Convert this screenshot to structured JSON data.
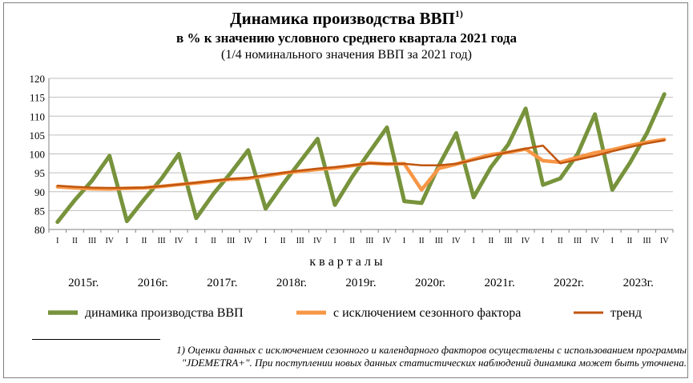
{
  "title": "Динамика производства ВВП",
  "title_sup": "1)",
  "subtitle": "в % к значению условного среднего квартала 2021 года",
  "subtitle2": "(1/4 номинального значения ВВП за 2021 год)",
  "footnote_line1": "1) Оценки  данных  с  исключением сезонного и календарного факторов осуществлены с использованием  программы",
  "footnote_line2": "\"JDEMETRA+\". При поступлении новых данных статистических наблюдений динамика может быть уточнена.",
  "chart_data": {
    "type": "line",
    "xlabel": "к в а р т а л ы",
    "ylim": [
      80,
      120
    ],
    "yticks": [
      80,
      85,
      90,
      95,
      100,
      105,
      110,
      115,
      120
    ],
    "grid": true,
    "legend_position": "bottom",
    "quarter_labels": [
      "I",
      "II",
      "III",
      "IV"
    ],
    "years": [
      "2015г.",
      "2016г.",
      "2017г.",
      "2018г.",
      "2019г.",
      "2020г.",
      "2021г.",
      "2022г.",
      "2023г."
    ],
    "categories": [
      "2015 I",
      "2015 II",
      "2015 III",
      "2015 IV",
      "2016 I",
      "2016 II",
      "2016 III",
      "2016 IV",
      "2017 I",
      "2017 II",
      "2017 III",
      "2017 IV",
      "2018 I",
      "2018 II",
      "2018 III",
      "2018 IV",
      "2019 I",
      "2019 II",
      "2019 III",
      "2019 IV",
      "2020 I",
      "2020 II",
      "2020 III",
      "2020 IV",
      "2021 I",
      "2021 II",
      "2021 III",
      "2021 IV",
      "2022 I",
      "2022 II",
      "2022 III",
      "2022 IV",
      "2023 I",
      "2023 II",
      "2023 III",
      "2023 IV"
    ],
    "series": [
      {
        "name": "динамика производства ВВП",
        "color": "#77933c",
        "values": [
          82.0,
          87.8,
          93.0,
          99.5,
          82.2,
          88.0,
          93.5,
          100.0,
          83.0,
          89.5,
          95.0,
          101.0,
          85.5,
          92.0,
          98.0,
          104.0,
          86.5,
          94.0,
          100.5,
          107.0,
          87.5,
          87.0,
          97.0,
          105.5,
          88.5,
          96.5,
          102.5,
          112.0,
          91.8,
          93.5,
          100.0,
          110.5,
          90.5,
          97.5,
          105.5,
          115.8
        ]
      },
      {
        "name": "с исключением  сезонного фактора",
        "color": "#f79646",
        "values": [
          91.3,
          91.0,
          90.8,
          90.7,
          90.9,
          91.0,
          91.4,
          91.9,
          92.3,
          92.8,
          93.3,
          93.5,
          94.2,
          94.9,
          95.4,
          95.9,
          96.3,
          96.9,
          97.6,
          97.3,
          97.4,
          90.5,
          96.2,
          97.3,
          98.6,
          99.8,
          100.4,
          101.3,
          98.2,
          97.8,
          99.1,
          100.3,
          101.1,
          102.2,
          103.1,
          103.8
        ]
      },
      {
        "name": "тренд",
        "color": "#c0560f",
        "values": [
          91.6,
          91.3,
          91.1,
          91.0,
          91.0,
          91.1,
          91.5,
          91.9,
          92.4,
          92.9,
          93.4,
          93.7,
          94.4,
          95.0,
          95.6,
          96.1,
          96.5,
          97.0,
          97.5,
          97.4,
          97.4,
          97.0,
          97.0,
          97.4,
          98.4,
          99.4,
          100.5,
          101.4,
          102.2,
          97.5,
          98.5,
          99.5,
          100.7,
          101.8,
          102.8,
          103.6
        ]
      }
    ]
  }
}
